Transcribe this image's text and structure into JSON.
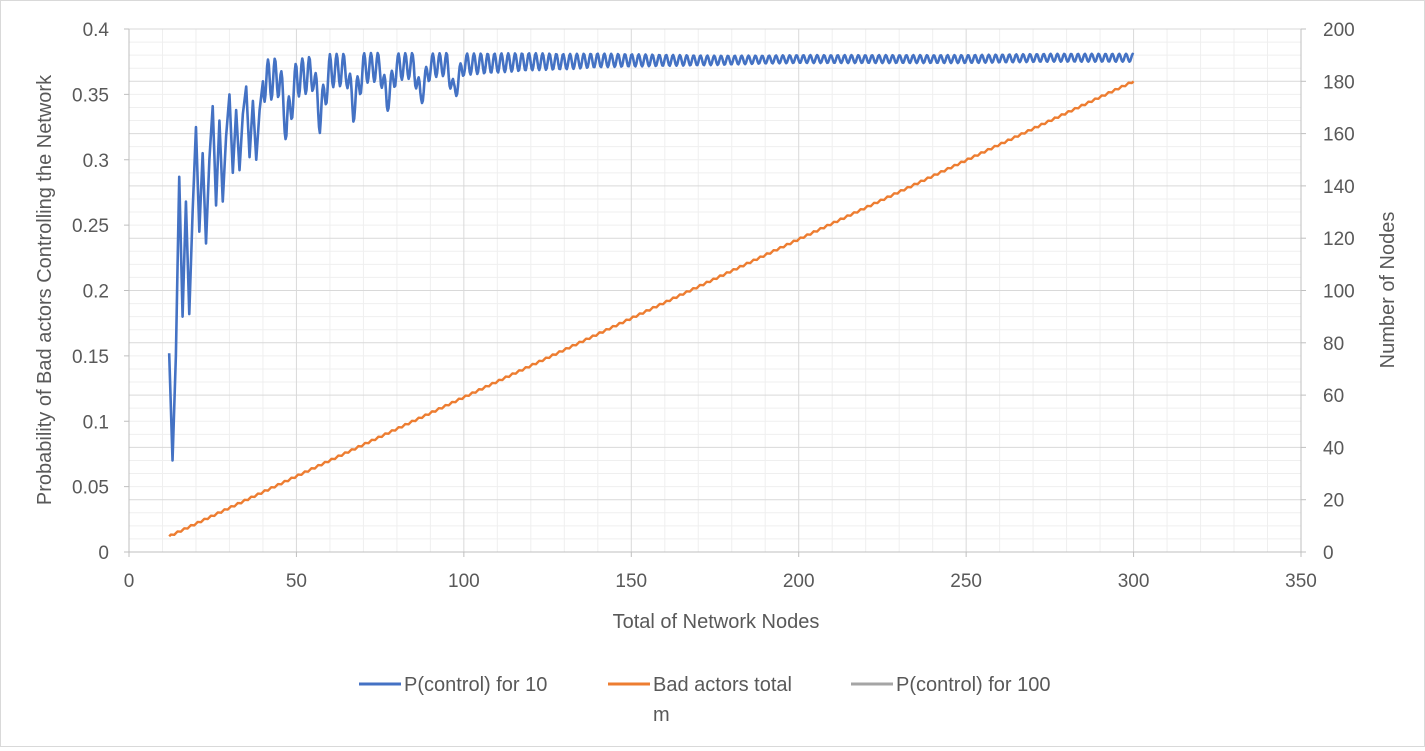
{
  "chart_data": {
    "type": "line",
    "xlabel": "Total of Network Nodes",
    "ylabel_left": "Probability of Bad actors Controlling the Network",
    "ylabel_right": "Number of  Nodes",
    "x_ticks": [
      "0",
      "50",
      "100",
      "150",
      "200",
      "250",
      "300",
      "350"
    ],
    "y_left_ticks": [
      "0",
      "0.05",
      "0.1",
      "0.15",
      "0.2",
      "0.25",
      "0.3",
      "0.35",
      "0.4"
    ],
    "y_right_ticks": [
      "0",
      "20",
      "40",
      "60",
      "80",
      "100",
      "120",
      "140",
      "160",
      "180",
      "200"
    ],
    "xlim": [
      0,
      350
    ],
    "ylim_left": [
      0,
      0.4
    ],
    "ylim_right": [
      0,
      200
    ],
    "grid": true,
    "legend_position": "bottom",
    "series": [
      {
        "name": "P(control) for 10",
        "axis": "left",
        "color": "#4472C4",
        "points": [
          [
            12,
            0.152
          ],
          [
            13,
            0.07
          ],
          [
            14,
            0.15
          ],
          [
            15,
            0.287
          ],
          [
            16,
            0.18
          ],
          [
            17,
            0.268
          ],
          [
            18,
            0.182
          ],
          [
            19,
            0.26
          ],
          [
            20,
            0.325
          ],
          [
            21,
            0.245
          ],
          [
            22,
            0.305
          ],
          [
            23,
            0.236
          ],
          [
            24,
            0.3
          ],
          [
            25,
            0.341
          ],
          [
            26,
            0.265
          ],
          [
            27,
            0.33
          ],
          [
            28,
            0.268
          ],
          [
            29,
            0.318
          ],
          [
            30,
            0.35
          ],
          [
            31,
            0.29
          ],
          [
            32,
            0.338
          ],
          [
            33,
            0.292
          ],
          [
            34,
            0.335
          ],
          [
            35,
            0.356
          ],
          [
            36,
            0.302
          ],
          [
            37,
            0.345
          ],
          [
            38,
            0.3
          ],
          [
            39,
            0.338
          ],
          [
            40,
            0.36
          ],
          [
            45,
            0.363
          ],
          [
            47,
            0.325
          ],
          [
            50,
            0.362
          ],
          [
            55,
            0.366
          ],
          [
            57,
            0.333
          ],
          [
            60,
            0.368
          ],
          [
            65,
            0.369
          ],
          [
            67,
            0.34
          ],
          [
            70,
            0.37
          ],
          [
            75,
            0.371
          ],
          [
            77,
            0.345
          ],
          [
            80,
            0.371
          ],
          [
            85,
            0.372
          ],
          [
            87,
            0.348
          ],
          [
            90,
            0.372
          ],
          [
            95,
            0.373
          ],
          [
            97,
            0.351
          ],
          [
            100,
            0.373
          ],
          [
            110,
            0.374
          ],
          [
            120,
            0.375
          ],
          [
            130,
            0.375
          ],
          [
            140,
            0.376
          ],
          [
            150,
            0.376
          ],
          [
            175,
            0.376
          ],
          [
            200,
            0.377
          ],
          [
            225,
            0.377
          ],
          [
            250,
            0.377
          ],
          [
            275,
            0.378
          ],
          [
            300,
            0.378
          ]
        ]
      },
      {
        "name": "Bad actors total m",
        "axis": "right",
        "color": "#ED7D31",
        "points": [
          [
            12,
            6
          ],
          [
            300,
            180
          ]
        ]
      },
      {
        "name": "P(control) for 100",
        "axis": "left",
        "color": "#A5A5A5",
        "points": []
      }
    ]
  }
}
